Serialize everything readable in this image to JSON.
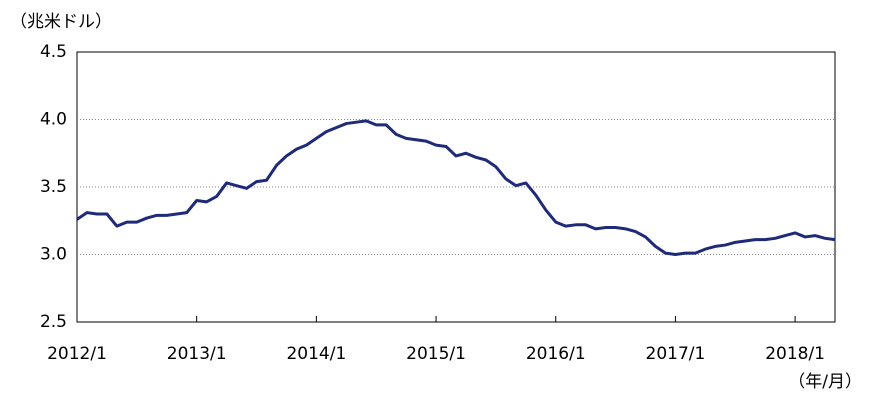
{
  "chart_data": {
    "type": "line",
    "y_label": "（兆米ドル）",
    "x_label": "（年/月）",
    "categories": [
      "2012/1",
      null,
      null,
      null,
      null,
      null,
      null,
      null,
      null,
      null,
      null,
      null,
      "2013/1",
      null,
      null,
      null,
      null,
      null,
      null,
      null,
      null,
      null,
      null,
      null,
      "2014/1",
      null,
      null,
      null,
      null,
      null,
      null,
      null,
      null,
      null,
      null,
      null,
      "2015/1",
      null,
      null,
      null,
      null,
      null,
      null,
      null,
      null,
      null,
      null,
      null,
      "2016/1",
      null,
      null,
      null,
      null,
      null,
      null,
      null,
      null,
      null,
      null,
      null,
      "2017/1",
      null,
      null,
      null,
      null,
      null,
      null,
      null,
      null,
      null,
      null,
      null,
      "2018/1",
      null,
      null,
      null,
      null
    ],
    "series": [
      {
        "color": "#1f2a78",
        "values": [
          3.26,
          3.31,
          3.3,
          3.3,
          3.21,
          3.24,
          3.24,
          3.27,
          3.29,
          3.29,
          3.3,
          3.31,
          3.4,
          3.39,
          3.43,
          3.53,
          3.51,
          3.49,
          3.54,
          3.55,
          3.66,
          3.73,
          3.78,
          3.81,
          3.86,
          3.91,
          3.94,
          3.97,
          3.98,
          3.99,
          3.96,
          3.96,
          3.89,
          3.86,
          3.85,
          3.84,
          3.81,
          3.8,
          3.73,
          3.75,
          3.72,
          3.7,
          3.65,
          3.56,
          3.51,
          3.53,
          3.44,
          3.33,
          3.24,
          3.21,
          3.22,
          3.22,
          3.19,
          3.2,
          3.2,
          3.19,
          3.17,
          3.13,
          3.06,
          3.01,
          3.0,
          3.01,
          3.01,
          3.04,
          3.06,
          3.07,
          3.09,
          3.1,
          3.11,
          3.11,
          3.12,
          3.14,
          3.16,
          3.13,
          3.14,
          3.12,
          3.11
        ]
      }
    ],
    "ylim": [
      2.5,
      4.5
    ],
    "yticks": [
      2.5,
      {
        "value": 3,
        "label": "3.0"
      },
      3.5,
      {
        "value": 4,
        "label": "4.0"
      },
      4.5
    ],
    "grid": true
  }
}
